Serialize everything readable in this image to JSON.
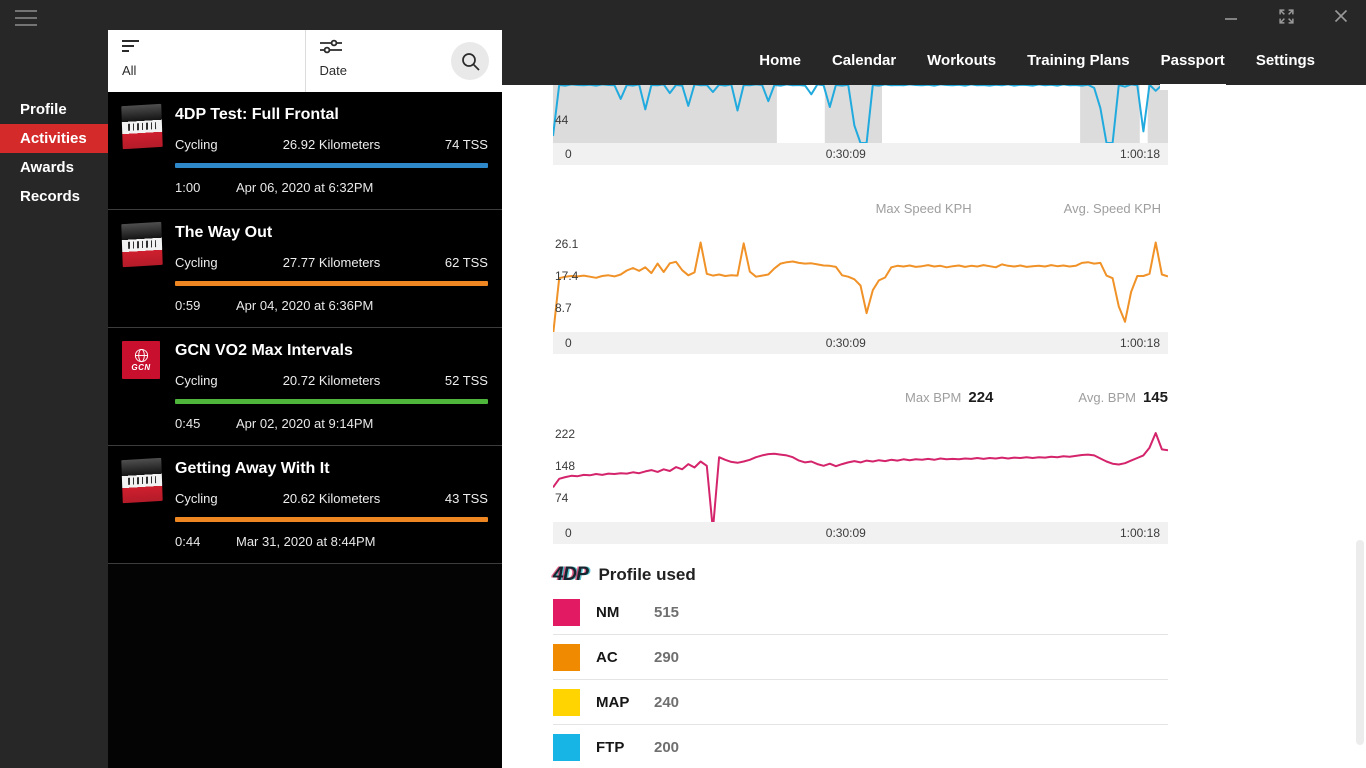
{
  "window": {
    "controls": [
      "minimize-icon",
      "expand-icon",
      "close-icon"
    ]
  },
  "colors": {
    "accent_red": "#d42a2a",
    "chrome_dark": "#272727",
    "zone_gray": "#dcdcdc"
  },
  "sidebar": {
    "items": [
      {
        "label": "Profile",
        "active": false
      },
      {
        "label": "Activities",
        "active": true
      },
      {
        "label": "Awards",
        "active": false
      },
      {
        "label": "Records",
        "active": false
      }
    ]
  },
  "filter_bar": {
    "group_label": "All",
    "sort_label": "Date"
  },
  "activities": [
    {
      "title": "4DP Test: Full Frontal",
      "sport": "Cycling",
      "distance": "26.92 Kilometers",
      "tss": "74 TSS",
      "duration": "1:00",
      "date": "Apr 06, 2020 at 6:32PM",
      "bar_color": "#2d87c8",
      "thumb": "sufferfest"
    },
    {
      "title": "The Way Out",
      "sport": "Cycling",
      "distance": "27.77 Kilometers",
      "tss": "62 TSS",
      "duration": "0:59",
      "date": "Apr 04, 2020 at 6:36PM",
      "bar_color": "#ee8722",
      "thumb": "sufferfest"
    },
    {
      "title": "GCN VO2 Max Intervals",
      "sport": "Cycling",
      "distance": "20.72 Kilometers",
      "tss": "52 TSS",
      "duration": "0:45",
      "date": "Apr 02, 2020 at 9:14PM",
      "bar_color": "#4fb63c",
      "thumb": "gcn",
      "thumb_text": "GCN"
    },
    {
      "title": "Getting Away With It",
      "sport": "Cycling",
      "distance": "20.62 Kilometers",
      "tss": "43 TSS",
      "duration": "0:44",
      "date": "Mar 31, 2020 at 8:44PM",
      "bar_color": "#ee8722",
      "thumb": "sufferfest"
    }
  ],
  "nav": {
    "items": [
      {
        "label": "Home",
        "active": false
      },
      {
        "label": "Calendar",
        "active": false
      },
      {
        "label": "Workouts",
        "active": false
      },
      {
        "label": "Training Plans",
        "active": false
      },
      {
        "label": "Passport",
        "active": true
      },
      {
        "label": "Settings",
        "active": false
      }
    ]
  },
  "chart_data": [
    {
      "id": "chart-top",
      "type": "line",
      "color": "#21aade",
      "zone_color": "#dcdcdc",
      "headers": [],
      "x_ticks": [
        "0",
        "0:30:09",
        "1:00:18"
      ],
      "y_ticks": [
        {
          "label": "44",
          "value": 40
        }
      ],
      "ylim": [
        0,
        100
      ],
      "zones": [
        [
          0,
          0.364
        ],
        [
          0.442,
          0.535
        ],
        [
          0.857,
          0.954
        ],
        [
          0.967,
          1.0
        ]
      ],
      "values": [
        12,
        100,
        99,
        101,
        100,
        99.5,
        100.5,
        99,
        101,
        100,
        99.5,
        76,
        100,
        99,
        101,
        58,
        100,
        99.5,
        101,
        86,
        100,
        99,
        64,
        101,
        99.5,
        100,
        88,
        100.5,
        99,
        101,
        56,
        100,
        99.5,
        101,
        100,
        72,
        100,
        99,
        101,
        99.5,
        100,
        99,
        84,
        101,
        99.5,
        62,
        100,
        99,
        100.5,
        30,
        0,
        0,
        100,
        99,
        101,
        99.5,
        100,
        99.5,
        101,
        100,
        99.5,
        100.5,
        99,
        101,
        100,
        99.5,
        100.5,
        99,
        101,
        99.5,
        100,
        99,
        100.5,
        99.5,
        101,
        99,
        100.5,
        100,
        99,
        101,
        99.5,
        100.5,
        99,
        101,
        99.5,
        100,
        99,
        100.5,
        95,
        60,
        0,
        0,
        100,
        97,
        101,
        99.5,
        20,
        100.5,
        90,
        100,
        99.5
      ]
    },
    {
      "id": "speed",
      "type": "line",
      "color": "#f09227",
      "headers": [
        {
          "label": "Max Speed KPH",
          "value": ""
        },
        {
          "label": "Avg. Speed KPH",
          "value": ""
        }
      ],
      "x_ticks": [
        "0",
        "0:30:09",
        "1:00:18"
      ],
      "y_ticks": [
        {
          "label": "26.1",
          "value": 26.1
        },
        {
          "label": "17.4",
          "value": 17.4
        },
        {
          "label": "8.7",
          "value": 8.7
        }
      ],
      "ylim": [
        2,
        29.5
      ],
      "values": [
        1,
        16.8,
        17.2,
        17.4,
        17.3,
        17.5,
        17.2,
        16.9,
        17.4,
        17.6,
        17.3,
        17.8,
        18.9,
        19.6,
        18.8,
        19.8,
        18.2,
        20.8,
        18.5,
        20.9,
        21.3,
        19,
        17.6,
        18.4,
        26.6,
        18,
        17.5,
        17.8,
        17.4,
        17.6,
        17.5,
        26.4,
        18.6,
        17.2,
        17.5,
        17.8,
        19.5,
        20.8,
        21.2,
        21.4,
        21,
        20.8,
        20.9,
        20.6,
        20.3,
        20.2,
        19.9,
        17.6,
        17.2,
        16.5,
        14.8,
        7.2,
        13.5,
        16.2,
        17,
        19.8,
        20.2,
        20,
        20.3,
        19.9,
        20.1,
        20.4,
        20,
        20.2,
        19.8,
        20.1,
        20.3,
        19.9,
        20.2,
        20,
        20.4,
        20.1,
        19.8,
        20.6,
        20.2,
        20,
        20.3,
        19.9,
        20.1,
        20.2,
        20,
        20.4,
        20.1,
        20.3,
        20,
        20.2,
        21,
        21.2,
        20.8,
        21,
        17.5,
        16.8,
        9,
        4.8,
        13,
        17.4,
        17.4,
        18,
        26.6,
        17.8,
        17.3
      ]
    },
    {
      "id": "heart-rate",
      "type": "line",
      "color": "#d4246b",
      "headers": [
        {
          "label": "Max BPM",
          "value": "224"
        },
        {
          "label": "Avg. BPM",
          "value": "145"
        }
      ],
      "x_ticks": [
        "0",
        "0:30:09",
        "1:00:18"
      ],
      "y_ticks": [
        {
          "label": "222",
          "value": 222
        },
        {
          "label": "148",
          "value": 148
        },
        {
          "label": "74",
          "value": 74
        }
      ],
      "ylim": [
        18,
        254
      ],
      "values": [
        98,
        118,
        122,
        125,
        124,
        127,
        126,
        129,
        127,
        130,
        129,
        131,
        130,
        133,
        131,
        135,
        138,
        134,
        140,
        136,
        145,
        140,
        152,
        144,
        158,
        148,
        0,
        168,
        162,
        157,
        155,
        158,
        162,
        168,
        172,
        175,
        176,
        174,
        172,
        168,
        160,
        156,
        158,
        152,
        148,
        153,
        147,
        152,
        156,
        159,
        156,
        160,
        158,
        161,
        159,
        162,
        160,
        163,
        161,
        163,
        162,
        164,
        162,
        165,
        163,
        164,
        163,
        165,
        164,
        166,
        164,
        166,
        165,
        167,
        165,
        167,
        166,
        168,
        166,
        168,
        167,
        169,
        168,
        170,
        169,
        171,
        173,
        174,
        172,
        165,
        158,
        153,
        151,
        154,
        160,
        166,
        172,
        190,
        224,
        186,
        184
      ]
    }
  ],
  "profile_used": {
    "logo": "4DP",
    "title": "Profile used",
    "rows": [
      {
        "label": "NM",
        "value": "515",
        "color": "#e11a63"
      },
      {
        "label": "AC",
        "value": "290",
        "color": "#f08a00"
      },
      {
        "label": "MAP",
        "value": "240",
        "color": "#ffd400"
      },
      {
        "label": "FTP",
        "value": "200",
        "color": "#17b5e5"
      }
    ]
  }
}
